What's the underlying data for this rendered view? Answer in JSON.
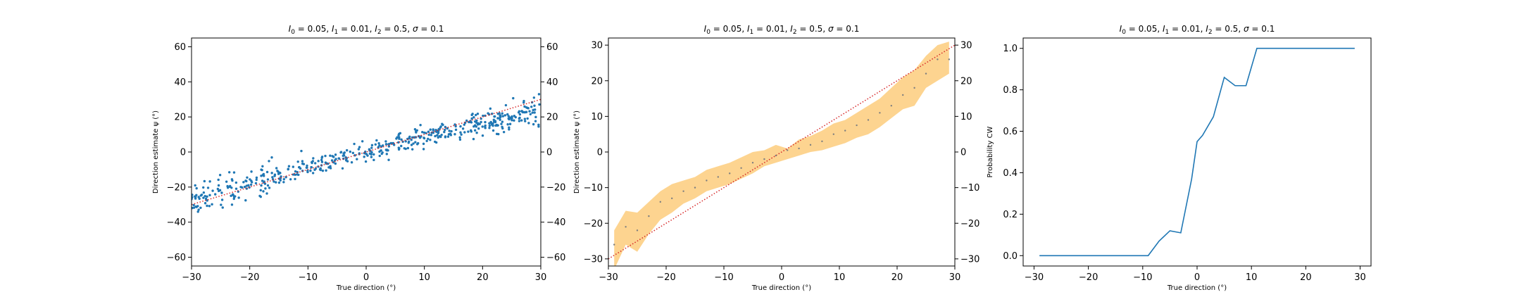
{
  "title_prefix": {
    "i0": "0.05",
    "i1": "0.01",
    "i2": "0.5",
    "sigma": "0.1"
  },
  "colors": {
    "scatter": "#1f77b4",
    "identity_line": "#d62728",
    "band_fill": "#fdd28a",
    "band_points": "#7f7f7f",
    "prob_line": "#1f77b4"
  },
  "chart_data": [
    {
      "type": "scatter",
      "title": "I0 = 0.05, I1 = 0.01, I2 = 0.5, σ = 0.1",
      "xlabel": "True direction (°)",
      "ylabel": "Direction estimate ψ (°)",
      "xlim": [
        -30,
        30
      ],
      "ylim": [
        -65,
        65
      ],
      "xticks": [
        -30,
        -20,
        -10,
        0,
        10,
        20,
        30
      ],
      "yticks": [
        -60,
        -40,
        -20,
        0,
        20,
        40,
        60
      ],
      "right_yticks": [
        -60,
        -40,
        -20,
        0,
        20,
        40,
        60
      ],
      "grid": false,
      "series": [
        {
          "kind": "points",
          "trend_slope": 0.85,
          "trend_curve": 0.006,
          "noise_sd": 3.2,
          "n": 520,
          "note": "estimates cluster around a line slightly shallower than identity near edges"
        },
        {
          "kind": "identity",
          "x": [
            -30,
            30
          ],
          "y": [
            -30,
            30
          ]
        }
      ]
    },
    {
      "type": "line",
      "title": "I0 = 0.05, I1 = 0.01, I2 = 0.5, σ = 0.1",
      "xlabel": "True direction (°)",
      "ylabel": "Direction estimate ψ (°)",
      "xlim": [
        -30,
        30
      ],
      "ylim": [
        -32,
        32
      ],
      "xticks": [
        -30,
        -20,
        -10,
        0,
        10,
        20,
        30
      ],
      "yticks": [
        -30,
        -20,
        -10,
        0,
        10,
        20,
        30
      ],
      "right_yticks": [
        -30,
        -20,
        -10,
        0,
        10,
        20,
        30
      ],
      "grid": false,
      "x": [
        -29,
        -27,
        -25,
        -23,
        -21,
        -19,
        -17,
        -15,
        -13,
        -11,
        -9,
        -7,
        -5,
        -3,
        -1,
        1,
        3,
        5,
        7,
        9,
        11,
        13,
        15,
        17,
        19,
        21,
        23,
        25,
        27,
        29
      ],
      "mean": [
        -26,
        -21,
        -22,
        -18,
        -14,
        -13,
        -11,
        -10,
        -8,
        -7,
        -6,
        -4.5,
        -3,
        -2,
        -1,
        0.5,
        1,
        2,
        3,
        5,
        6,
        7.5,
        9,
        11,
        13,
        16,
        18,
        22,
        26,
        26
      ],
      "upper": [
        -22,
        -16.5,
        -17,
        -14,
        -11,
        -9,
        -8,
        -7,
        -5,
        -4,
        -3,
        -1.5,
        0,
        0.5,
        2,
        1,
        3.5,
        4.5,
        6,
        8,
        9,
        11,
        13,
        15,
        18,
        21,
        23,
        27,
        30,
        31
      ],
      "lower": [
        -33,
        -26,
        -28,
        -23,
        -19,
        -17,
        -14.5,
        -13,
        -11,
        -10,
        -9,
        -7.5,
        -6,
        -4,
        -3,
        -2,
        -1,
        0,
        0.5,
        1.5,
        2.5,
        4,
        5,
        7,
        9.5,
        12,
        13,
        18,
        20,
        22
      ],
      "identity": {
        "x": [
          -30,
          30
        ],
        "y": [
          -30,
          30
        ]
      }
    },
    {
      "type": "line",
      "title": "I0 = 0.05, I1 = 0.01, I2 = 0.5, σ = 0.1",
      "xlabel": "True direction (°)",
      "ylabel": "Probability CW",
      "xlim": [
        -32,
        32
      ],
      "ylim": [
        -0.05,
        1.05
      ],
      "xticks": [
        -30,
        -20,
        -10,
        0,
        10,
        20,
        30
      ],
      "yticks": [
        0.0,
        0.2,
        0.4,
        0.6,
        0.8,
        1.0
      ],
      "ytick_labels": [
        "0.0",
        "0.2",
        "0.4",
        "0.6",
        "0.8",
        "1.0"
      ],
      "grid": false,
      "x": [
        -29,
        -27,
        -25,
        -23,
        -21,
        -19,
        -17,
        -15,
        -13,
        -11,
        -9,
        -7,
        -5,
        -3,
        -1,
        0,
        1,
        3,
        5,
        7,
        9,
        11,
        13,
        15,
        17,
        19,
        21,
        23,
        25,
        27,
        29
      ],
      "y": [
        0,
        0,
        0,
        0,
        0,
        0,
        0,
        0,
        0,
        0,
        0,
        0.07,
        0.12,
        0.11,
        0.37,
        0.55,
        0.58,
        0.67,
        0.86,
        0.82,
        0.82,
        1,
        1,
        1,
        1,
        1,
        1,
        1,
        1,
        1,
        1
      ]
    }
  ]
}
